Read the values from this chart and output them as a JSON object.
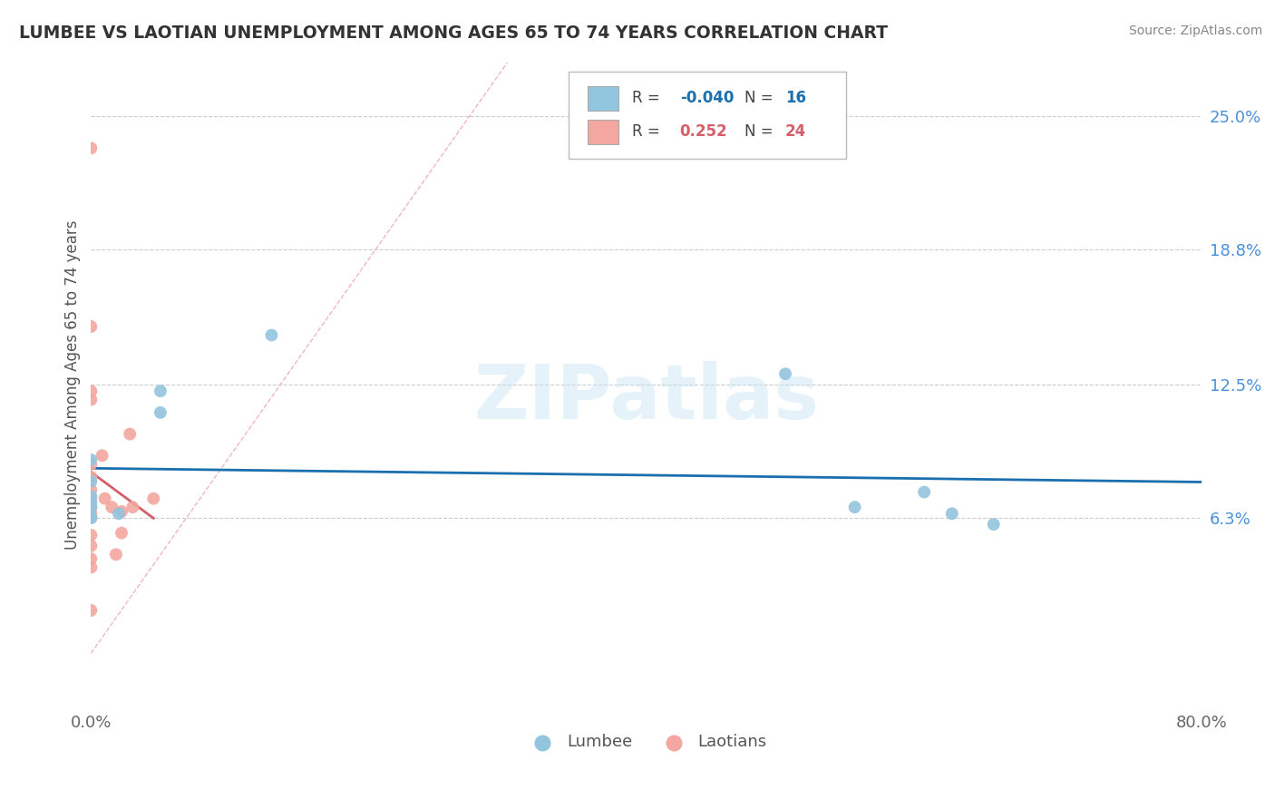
{
  "title": "LUMBEE VS LAOTIAN UNEMPLOYMENT AMONG AGES 65 TO 74 YEARS CORRELATION CHART",
  "source": "Source: ZipAtlas.com",
  "ylabel": "Unemployment Among Ages 65 to 74 years",
  "xlim": [
    0.0,
    0.8
  ],
  "ylim": [
    -0.025,
    0.275
  ],
  "ytick_vals": [
    0.063,
    0.125,
    0.188,
    0.25
  ],
  "ytick_labels": [
    "6.3%",
    "12.5%",
    "18.8%",
    "25.0%"
  ],
  "xtick_vals": [
    0.0,
    0.8
  ],
  "xtick_labels": [
    "0.0%",
    "80.0%"
  ],
  "lumbee_color": "#92c5de",
  "laotian_color": "#f4a6a0",
  "lumbee_R": -0.04,
  "lumbee_N": 16,
  "laotian_R": 0.252,
  "laotian_N": 24,
  "lumbee_x": [
    0.0,
    0.0,
    0.0,
    0.0,
    0.0,
    0.0,
    0.0,
    0.02,
    0.05,
    0.05,
    0.13,
    0.5,
    0.55,
    0.6,
    0.62,
    0.65
  ],
  "lumbee_y": [
    0.073,
    0.08,
    0.09,
    0.068,
    0.07,
    0.063,
    0.063,
    0.065,
    0.122,
    0.112,
    0.148,
    0.13,
    0.068,
    0.075,
    0.065,
    0.06
  ],
  "laotian_x": [
    0.0,
    0.0,
    0.0,
    0.0,
    0.0,
    0.0,
    0.0,
    0.0,
    0.0,
    0.0,
    0.0,
    0.0,
    0.0,
    0.0,
    0.0,
    0.008,
    0.01,
    0.015,
    0.018,
    0.022,
    0.022,
    0.028,
    0.03,
    0.045
  ],
  "laotian_y": [
    0.235,
    0.152,
    0.122,
    0.118,
    0.088,
    0.082,
    0.076,
    0.072,
    0.068,
    0.065,
    0.055,
    0.05,
    0.044,
    0.04,
    0.02,
    0.092,
    0.072,
    0.068,
    0.046,
    0.066,
    0.056,
    0.102,
    0.068,
    0.072
  ],
  "watermark_text": "ZIPatlas",
  "background_color": "#ffffff",
  "grid_color": "#cccccc",
  "title_color": "#333333",
  "lumbee_line_color": "#1a6faf",
  "laotian_line_color": "#d45f6a",
  "ref_line_color": "#f0b8b8",
  "ytick_color": "#4a90d9",
  "legend_box_color": "#cccccc"
}
